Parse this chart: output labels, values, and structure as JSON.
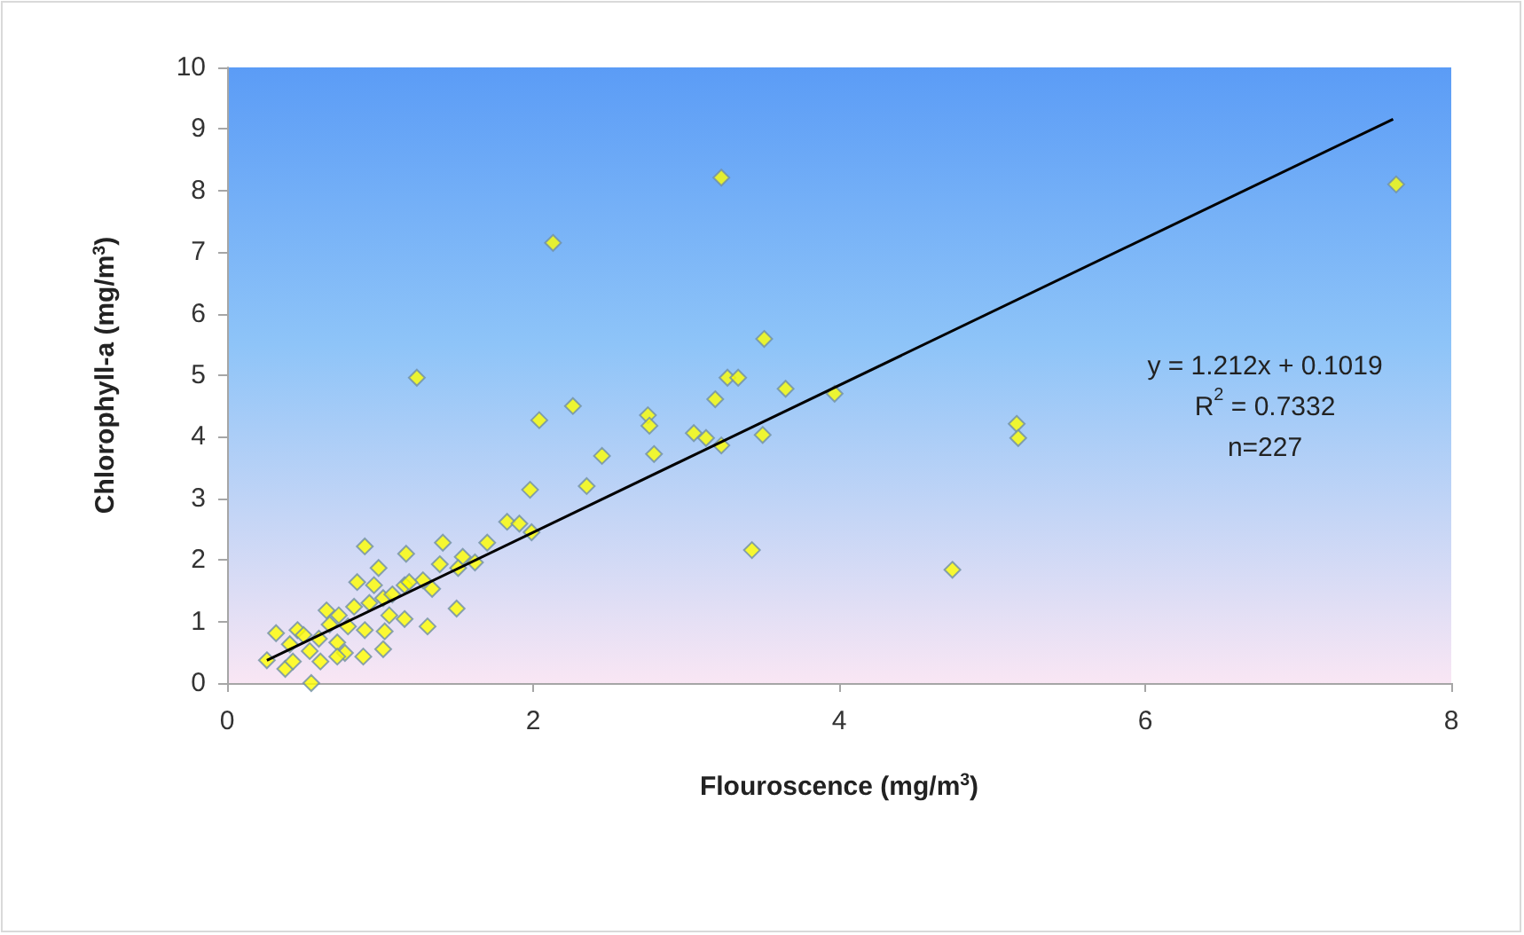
{
  "chart_data": {
    "type": "scatter",
    "xlabel": "Flouroscence (mg/m$^{3}$)",
    "ylabel": "Chlorophyll-a (mg/m$^{3}$)",
    "xlim": [
      0,
      8
    ],
    "xticks": [
      0,
      2,
      4,
      6,
      8
    ],
    "ylim": [
      0,
      10
    ],
    "yticks": [
      0,
      1,
      2,
      3,
      4,
      5,
      6,
      7,
      8,
      9,
      10
    ],
    "grid": false,
    "marker": "diamond",
    "annotations": [
      "y = 1.212x + 0.1019",
      "R$^{2}$ = 0.7332",
      "n=227"
    ],
    "series": [
      {
        "color": "#ffff00",
        "x": [
          7.64,
          3.23,
          2.13,
          1.24,
          3.51,
          3.27,
          3.34,
          3.65,
          3.97,
          3.19,
          2.26,
          2.04,
          2.75,
          2.76,
          3.05,
          3.5,
          3.13,
          3.23,
          2.45,
          2.79,
          1.98,
          2.35,
          5.16,
          5.17,
          4.74,
          3.43,
          1.83,
          1.91,
          1.99,
          1.7,
          0.9,
          1.41,
          1.17,
          1.54,
          0.99,
          1.39,
          0.85,
          0.96,
          1.16,
          1.34,
          0.65,
          1.16,
          1.31,
          1.5,
          1.06,
          0.9,
          1.03,
          0.77,
          0.89,
          1.02,
          0.32,
          0.46,
          0.54,
          0.26,
          0.38,
          0.55,
          0.79,
          0.72,
          0.6,
          0.83,
          0.93,
          1.02,
          0.73,
          0.67,
          0.5,
          0.41,
          1.28,
          1.51,
          1.62,
          1.08,
          1.19,
          0.43,
          0.61,
          0.72
        ],
        "values": [
          8.1,
          8.21,
          7.15,
          4.96,
          5.59,
          4.96,
          4.96,
          4.78,
          4.7,
          4.61,
          4.5,
          4.27,
          4.35,
          4.18,
          4.06,
          4.03,
          3.98,
          3.86,
          3.69,
          3.72,
          3.14,
          3.2,
          4.21,
          3.98,
          1.84,
          2.16,
          2.62,
          2.59,
          2.45,
          2.28,
          2.22,
          2.28,
          2.1,
          2.05,
          1.87,
          1.93,
          1.64,
          1.59,
          1.59,
          1.53,
          1.18,
          1.04,
          0.92,
          1.21,
          1.1,
          0.86,
          0.84,
          0.49,
          0.43,
          0.55,
          0.81,
          0.86,
          0.52,
          0.37,
          0.23,
          0.0,
          0.92,
          0.66,
          0.72,
          1.24,
          1.3,
          1.38,
          1.1,
          0.95,
          0.78,
          0.63,
          1.67,
          1.87,
          1.96,
          1.44,
          1.64,
          0.35,
          0.35,
          0.43
        ]
      },
      {
        "type": "line",
        "color": "#000000",
        "marker": "none",
        "x": [
          0.26,
          7.62
        ],
        "values": [
          0.37,
          9.16
        ]
      }
    ]
  }
}
